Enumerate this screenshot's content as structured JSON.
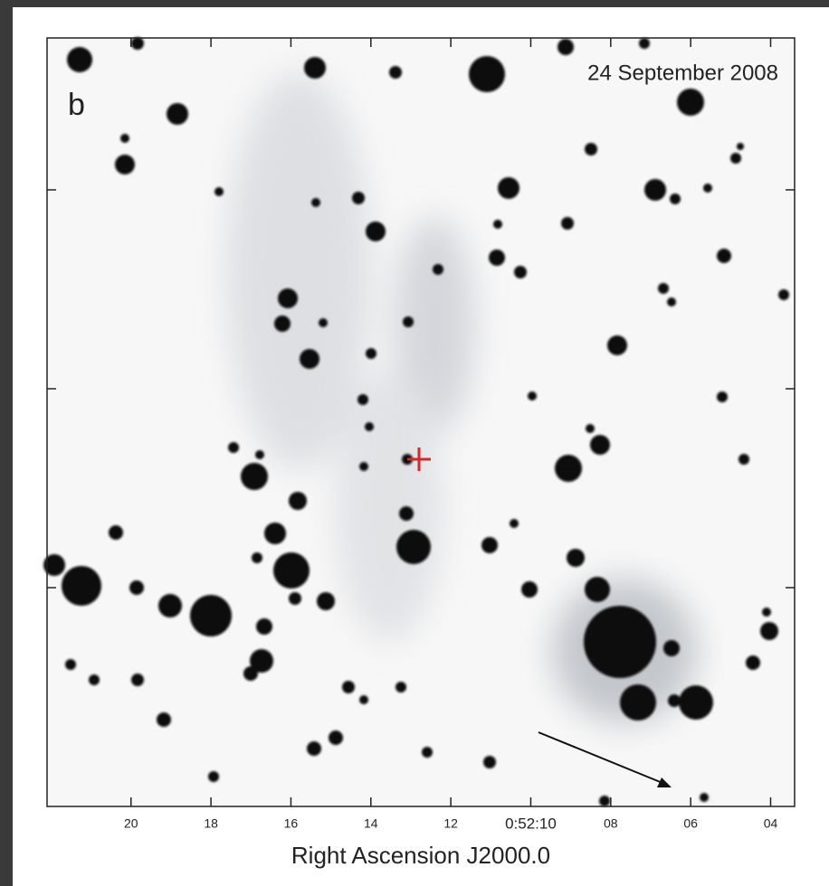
{
  "chart_data": {
    "type": "image",
    "panel_label": "b",
    "date": "24 September 2008",
    "x_label": "Right Ascension J2000.0",
    "xlim": [
      22.1,
      3.4
    ],
    "xticks": [
      20,
      18,
      16,
      14,
      12,
      {
        "value": 10,
        "label": "0:52:10"
      },
      {
        "value": 8,
        "label": "08"
      },
      {
        "value": 6,
        "label": "06"
      },
      {
        "value": 4,
        "label": "04"
      }
    ]
  }
}
